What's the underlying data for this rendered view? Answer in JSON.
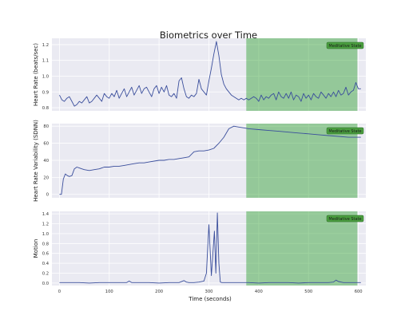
{
  "title": "Biometrics over Time",
  "xlabel": "Time (seconds)",
  "colors": {
    "line": "#3a4e9c",
    "panel_bg": "#eaeaf2",
    "grid": "#ffffff",
    "shade": "#2ca02c",
    "badge_bg": "#4a9e3f",
    "badge_text": "#1a1a1a"
  },
  "chart_data": [
    {
      "type": "line",
      "ylabel": "Heart Rate (beats/sec)",
      "xlim": [
        -15,
        615
      ],
      "ylim": [
        0.78,
        1.24
      ],
      "yticks": [
        0.8,
        0.9,
        1.0,
        1.1,
        1.2
      ],
      "ytick_labels": [
        "0.8",
        "0.9",
        "1.0",
        "1.1",
        "1.2"
      ],
      "grid": true,
      "shaded_region": {
        "x_start": 375,
        "x_end": 598,
        "label": "Meditative State"
      },
      "x": [
        0,
        5,
        10,
        15,
        20,
        25,
        30,
        35,
        40,
        45,
        50,
        55,
        60,
        65,
        70,
        75,
        80,
        85,
        90,
        95,
        100,
        105,
        110,
        115,
        120,
        125,
        130,
        135,
        140,
        145,
        150,
        155,
        160,
        165,
        170,
        175,
        180,
        185,
        190,
        195,
        200,
        205,
        210,
        215,
        220,
        225,
        230,
        235,
        240,
        245,
        250,
        255,
        260,
        265,
        270,
        275,
        280,
        285,
        290,
        295,
        300,
        305,
        310,
        315,
        320,
        325,
        330,
        335,
        340,
        345,
        350,
        355,
        360,
        365,
        370,
        375,
        380,
        385,
        390,
        395,
        400,
        405,
        410,
        415,
        420,
        425,
        430,
        435,
        440,
        445,
        450,
        455,
        460,
        465,
        470,
        475,
        480,
        485,
        490,
        495,
        500,
        505,
        510,
        515,
        520,
        525,
        530,
        535,
        540,
        545,
        550,
        555,
        560,
        565,
        570,
        575,
        580,
        585,
        590,
        595,
        600,
        605
      ],
      "y": [
        0.88,
        0.85,
        0.84,
        0.86,
        0.87,
        0.84,
        0.81,
        0.82,
        0.84,
        0.83,
        0.85,
        0.87,
        0.83,
        0.84,
        0.86,
        0.88,
        0.86,
        0.84,
        0.89,
        0.87,
        0.86,
        0.89,
        0.87,
        0.91,
        0.86,
        0.89,
        0.92,
        0.87,
        0.9,
        0.93,
        0.88,
        0.91,
        0.94,
        0.89,
        0.92,
        0.93,
        0.9,
        0.87,
        0.92,
        0.94,
        0.89,
        0.93,
        0.9,
        0.94,
        0.88,
        0.87,
        0.89,
        0.86,
        0.97,
        0.99,
        0.92,
        0.87,
        0.86,
        0.88,
        0.87,
        0.89,
        0.98,
        0.92,
        0.9,
        0.88,
        0.97,
        1.05,
        1.14,
        1.22,
        1.13,
        1.01,
        0.95,
        0.92,
        0.9,
        0.88,
        0.87,
        0.86,
        0.85,
        0.86,
        0.85,
        0.86,
        0.85,
        0.86,
        0.87,
        0.86,
        0.84,
        0.88,
        0.85,
        0.87,
        0.86,
        0.88,
        0.89,
        0.85,
        0.9,
        0.87,
        0.86,
        0.89,
        0.86,
        0.9,
        0.85,
        0.88,
        0.87,
        0.84,
        0.89,
        0.86,
        0.88,
        0.85,
        0.89,
        0.87,
        0.86,
        0.9,
        0.88,
        0.86,
        0.89,
        0.87,
        0.9,
        0.87,
        0.91,
        0.88,
        0.89,
        0.93,
        0.88,
        0.9,
        0.91,
        0.96,
        0.92,
        0.92
      ]
    },
    {
      "type": "line",
      "ylabel": "Heart Rate Variability (SDNN)",
      "xlim": [
        -15,
        615
      ],
      "ylim": [
        -4,
        83
      ],
      "yticks": [
        0,
        20,
        40,
        60,
        80
      ],
      "ytick_labels": [
        "0",
        "20",
        "40",
        "60",
        "80"
      ],
      "grid": true,
      "shaded_region": {
        "x_start": 375,
        "x_end": 598,
        "label": "Meditative State"
      },
      "x": [
        0,
        4,
        8,
        12,
        16,
        20,
        25,
        30,
        35,
        40,
        45,
        50,
        60,
        70,
        80,
        90,
        100,
        110,
        120,
        130,
        140,
        150,
        160,
        170,
        180,
        190,
        200,
        210,
        220,
        230,
        240,
        250,
        260,
        270,
        280,
        290,
        300,
        310,
        320,
        330,
        340,
        350,
        360,
        370,
        380,
        400,
        420,
        440,
        460,
        480,
        500,
        520,
        540,
        560,
        580,
        600,
        605
      ],
      "y": [
        0,
        0,
        18,
        24,
        22,
        21,
        22,
        30,
        32,
        31,
        30,
        29,
        28,
        29,
        30,
        32,
        32,
        33,
        33,
        34,
        35,
        36,
        37,
        37,
        38,
        39,
        40,
        40,
        41,
        41,
        42,
        43,
        44,
        50,
        51,
        51,
        52,
        54,
        60,
        67,
        77,
        80,
        79,
        78,
        77,
        76,
        75,
        74,
        73,
        72,
        71,
        70,
        69,
        68,
        67,
        67,
        67
      ]
    },
    {
      "type": "line",
      "ylabel": "Motion",
      "xlim": [
        -15,
        615
      ],
      "ylim": [
        -0.05,
        1.45
      ],
      "yticks": [
        0.0,
        0.2,
        0.4,
        0.6,
        0.8,
        1.0,
        1.2,
        1.4
      ],
      "ytick_labels": [
        "0.0",
        "0.2",
        "0.4",
        "0.6",
        "0.8",
        "1.0",
        "1.2",
        "1.4"
      ],
      "grid": true,
      "shaded_region": {
        "x_start": 375,
        "x_end": 598,
        "label": "Meditative State"
      },
      "x": [
        0,
        20,
        40,
        60,
        80,
        100,
        120,
        135,
        140,
        145,
        160,
        180,
        200,
        220,
        240,
        250,
        255,
        260,
        270,
        280,
        290,
        295,
        300,
        305,
        308,
        311,
        314,
        317,
        320,
        323,
        326,
        330,
        340,
        360,
        380,
        400,
        420,
        440,
        460,
        480,
        500,
        520,
        540,
        550,
        555,
        560,
        570,
        590,
        605
      ],
      "y": [
        0.01,
        0.01,
        0.01,
        0.0,
        0.01,
        0.01,
        0.01,
        0.01,
        0.04,
        0.01,
        0.01,
        0.01,
        0.0,
        0.01,
        0.01,
        0.05,
        0.02,
        0.01,
        0.01,
        0.02,
        0.04,
        0.2,
        1.18,
        0.15,
        0.6,
        1.05,
        0.2,
        1.42,
        0.4,
        0.02,
        0.01,
        0.01,
        0.01,
        0.01,
        0.01,
        0.0,
        0.01,
        0.01,
        0.01,
        0.0,
        0.01,
        0.01,
        0.01,
        0.02,
        0.06,
        0.03,
        0.01,
        0.01,
        0.01
      ]
    }
  ],
  "xticks": [
    0,
    100,
    200,
    300,
    400,
    500,
    600
  ],
  "xtick_labels": [
    "0",
    "100",
    "200",
    "300",
    "400",
    "500",
    "600"
  ]
}
